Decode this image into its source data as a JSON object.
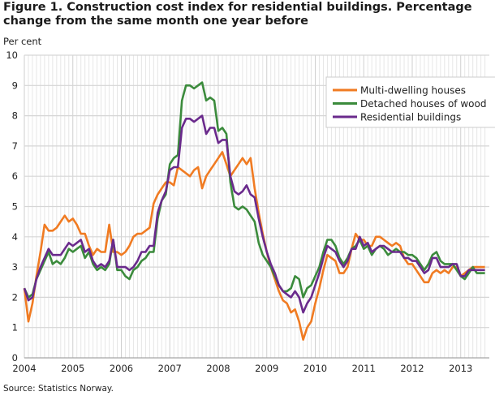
{
  "chart_data": {
    "type": "line",
    "title": "Figure 1. Construction cost index for residential buildings. Percentage change from the same month one year before",
    "ylabel": "Per cent",
    "xlabel": "",
    "source": "Source: Statistics Norway.",
    "x_start": "2004-01",
    "x_frequency": "monthly",
    "xlim": [
      "2004-01",
      "2013-07"
    ],
    "ylim": [
      0,
      10
    ],
    "x_ticks": [
      "2004",
      "2005",
      "2006",
      "2007",
      "2008",
      "2009",
      "2010",
      "2011",
      "2012",
      "2013"
    ],
    "y_ticks": [
      "0",
      "1",
      "2",
      "3",
      "4",
      "5",
      "6",
      "7",
      "8",
      "9",
      "10"
    ],
    "grid": true,
    "legend_position": "top-right",
    "series": [
      {
        "name": "Multi-dwelling houses",
        "color": "#f07b22",
        "values": [
          2.3,
          1.2,
          1.8,
          2.7,
          3.5,
          4.4,
          4.2,
          4.2,
          4.3,
          4.5,
          4.7,
          4.5,
          4.6,
          4.4,
          4.1,
          4.1,
          3.7,
          3.4,
          3.6,
          3.5,
          3.5,
          4.4,
          3.5,
          3.5,
          3.4,
          3.5,
          3.7,
          4.0,
          4.1,
          4.1,
          4.2,
          4.3,
          5.1,
          5.4,
          5.6,
          5.8,
          5.8,
          5.7,
          6.3,
          6.2,
          6.1,
          6.0,
          6.2,
          6.3,
          5.6,
          6.0,
          6.2,
          6.4,
          6.6,
          6.8,
          6.4,
          6.0,
          6.2,
          6.4,
          6.6,
          6.4,
          6.6,
          5.6,
          4.8,
          4.1,
          3.5,
          3.0,
          2.6,
          2.2,
          1.9,
          1.8,
          1.5,
          1.6,
          1.2,
          0.6,
          1.0,
          1.2,
          1.8,
          2.3,
          2.9,
          3.4,
          3.3,
          3.2,
          2.8,
          2.8,
          3.0,
          3.6,
          4.1,
          3.9,
          3.9,
          3.7,
          3.7,
          4.0,
          4.0,
          3.9,
          3.8,
          3.7,
          3.8,
          3.7,
          3.3,
          3.1,
          3.1,
          2.9,
          2.7,
          2.5,
          2.5,
          2.8,
          2.9,
          2.8,
          2.9,
          2.8,
          3.0,
          3.0,
          2.7,
          2.8,
          2.9,
          3.0,
          3.0,
          3.0,
          3.0
        ]
      },
      {
        "name": "Detached houses of wood",
        "color": "#3b8b3c",
        "values": [
          2.3,
          2.0,
          2.1,
          2.6,
          2.9,
          3.2,
          3.5,
          3.1,
          3.2,
          3.1,
          3.3,
          3.6,
          3.5,
          3.6,
          3.7,
          3.3,
          3.5,
          3.1,
          2.9,
          3.0,
          2.9,
          3.1,
          3.9,
          2.9,
          2.9,
          2.7,
          2.6,
          2.9,
          3.0,
          3.2,
          3.3,
          3.5,
          3.5,
          4.6,
          5.2,
          5.4,
          6.4,
          6.6,
          6.7,
          8.5,
          9.0,
          9.0,
          8.9,
          9.0,
          9.1,
          8.5,
          8.6,
          8.5,
          7.5,
          7.6,
          7.4,
          5.8,
          5.0,
          4.9,
          5.0,
          4.9,
          4.7,
          4.5,
          3.8,
          3.4,
          3.2,
          3.0,
          2.7,
          2.4,
          2.2,
          2.2,
          2.3,
          2.7,
          2.6,
          2.0,
          2.3,
          2.4,
          2.7,
          3.0,
          3.5,
          3.9,
          3.9,
          3.7,
          3.3,
          3.1,
          3.3,
          3.6,
          3.7,
          3.9,
          3.6,
          3.7,
          3.4,
          3.6,
          3.7,
          3.6,
          3.4,
          3.5,
          3.6,
          3.5,
          3.5,
          3.4,
          3.4,
          3.3,
          3.1,
          2.9,
          3.1,
          3.4,
          3.5,
          3.2,
          3.1,
          3.1,
          3.1,
          2.9,
          2.7,
          2.6,
          2.8,
          3.0,
          2.8,
          2.8,
          2.8
        ]
      },
      {
        "name": "Residential buildings",
        "color": "#6a2a8c",
        "values": [
          2.3,
          1.9,
          2.0,
          2.6,
          3.0,
          3.3,
          3.6,
          3.4,
          3.4,
          3.4,
          3.6,
          3.8,
          3.7,
          3.8,
          3.9,
          3.5,
          3.6,
          3.2,
          3.0,
          3.1,
          3.0,
          3.2,
          3.9,
          3.0,
          3.0,
          3.0,
          2.9,
          3.0,
          3.2,
          3.5,
          3.5,
          3.7,
          3.7,
          4.8,
          5.2,
          5.5,
          6.2,
          6.3,
          6.3,
          7.6,
          7.9,
          7.9,
          7.8,
          7.9,
          8.0,
          7.4,
          7.6,
          7.6,
          7.1,
          7.2,
          7.2,
          6.0,
          5.5,
          5.4,
          5.5,
          5.7,
          5.4,
          5.3,
          4.6,
          4.0,
          3.5,
          3.1,
          2.8,
          2.4,
          2.2,
          2.1,
          2.0,
          2.2,
          2.0,
          1.5,
          1.8,
          2.0,
          2.4,
          2.8,
          3.3,
          3.7,
          3.6,
          3.5,
          3.2,
          3.0,
          3.2,
          3.6,
          3.6,
          4.0,
          3.7,
          3.8,
          3.5,
          3.6,
          3.7,
          3.7,
          3.6,
          3.5,
          3.5,
          3.5,
          3.3,
          3.3,
          3.2,
          3.2,
          3.0,
          2.8,
          2.9,
          3.3,
          3.3,
          3.0,
          3.0,
          3.0,
          3.1,
          3.1,
          2.7,
          2.7,
          2.9,
          2.9,
          2.9,
          2.9,
          2.9
        ]
      }
    ]
  }
}
